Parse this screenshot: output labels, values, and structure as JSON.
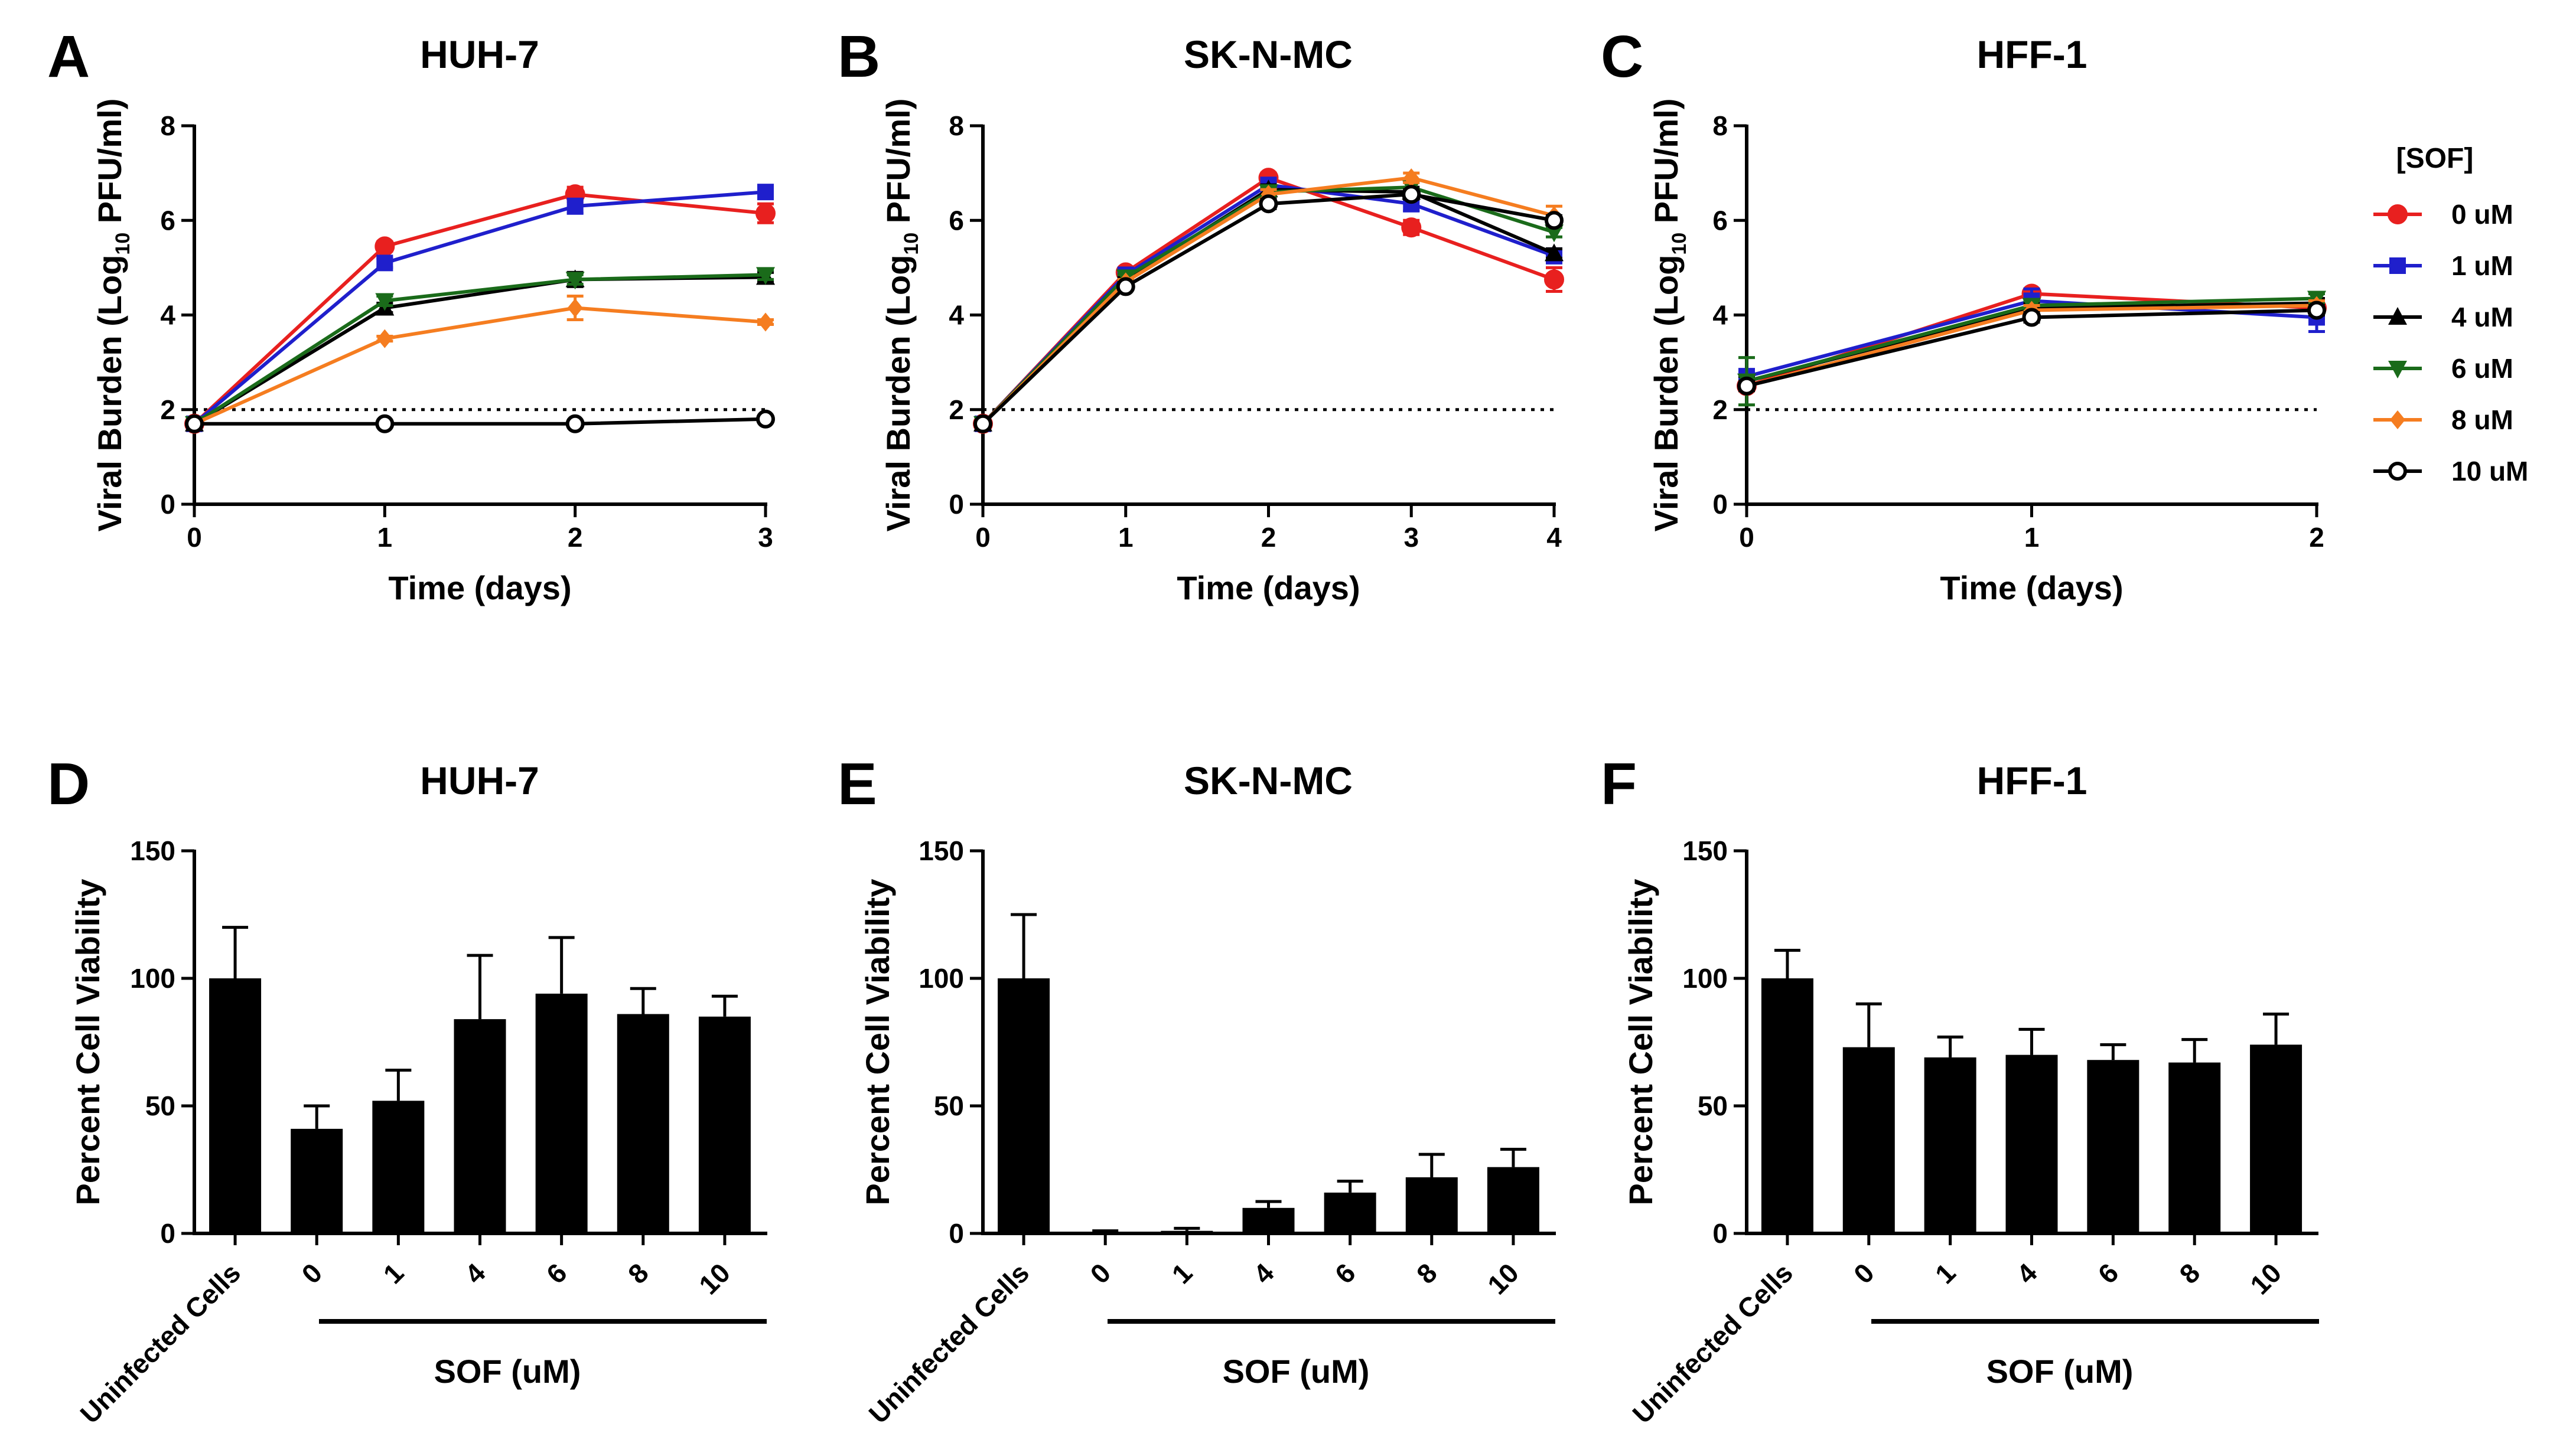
{
  "legend": {
    "title": "[SOF]",
    "entries": [
      {
        "label": "0 uM",
        "color": "#e8201f",
        "marker": "circle-filled"
      },
      {
        "label": "1 uM",
        "color": "#1f1fcc",
        "marker": "square-filled"
      },
      {
        "label": "4 uM",
        "color": "#000000",
        "marker": "triangle-up"
      },
      {
        "label": "6 uM",
        "color": "#1a6b1a",
        "marker": "triangle-down"
      },
      {
        "label": "8 uM",
        "color": "#f57d20",
        "marker": "diamond"
      },
      {
        "label": "10 uM",
        "color": "#000000",
        "marker": "circle-open"
      }
    ]
  },
  "chart_data": [
    {
      "id": "A",
      "type": "line",
      "title": "HUH-7",
      "xlabel": "Time (days)",
      "ylabel": {
        "pre": "Viral Burden (Log",
        "sub": "10",
        "post": " PFU/ml)"
      },
      "xlim": [
        0,
        3
      ],
      "ylim": [
        0,
        8
      ],
      "xticks": [
        0,
        1,
        2,
        3
      ],
      "yticks": [
        0,
        2,
        4,
        6,
        8
      ],
      "reference_line": 2,
      "x": [
        0,
        1,
        2,
        3
      ],
      "series": [
        {
          "name": "0 uM",
          "values": [
            1.7,
            5.45,
            6.55,
            6.15
          ],
          "errors": [
            0,
            0.1,
            0.15,
            0.2
          ]
        },
        {
          "name": "1 uM",
          "values": [
            1.7,
            5.1,
            6.3,
            6.6
          ],
          "errors": [
            0,
            0.1,
            0.15,
            0.1
          ]
        },
        {
          "name": "4 uM",
          "values": [
            1.7,
            4.15,
            4.75,
            4.8
          ],
          "errors": [
            0,
            0.1,
            0.15,
            0.1
          ]
        },
        {
          "name": "6 uM",
          "values": [
            1.7,
            4.3,
            4.75,
            4.85
          ],
          "errors": [
            0,
            0.1,
            0.1,
            0.1
          ]
        },
        {
          "name": "8 uM",
          "values": [
            1.7,
            3.5,
            4.15,
            3.85
          ],
          "errors": [
            0,
            0.05,
            0.25,
            0.05
          ]
        },
        {
          "name": "10 uM",
          "values": [
            1.7,
            1.7,
            1.7,
            1.8
          ],
          "errors": [
            0,
            0,
            0,
            0.05
          ]
        }
      ]
    },
    {
      "id": "B",
      "type": "line",
      "title": "SK-N-MC",
      "xlabel": "Time (days)",
      "ylabel": {
        "pre": "Viral Burden (Log",
        "sub": "10",
        "post": " PFU/ml)"
      },
      "xlim": [
        0,
        4
      ],
      "ylim": [
        0,
        8
      ],
      "xticks": [
        0,
        1,
        2,
        3,
        4
      ],
      "yticks": [
        0,
        2,
        4,
        6,
        8
      ],
      "reference_line": 2,
      "x": [
        0,
        1,
        2,
        3,
        4
      ],
      "series": [
        {
          "name": "0 uM",
          "values": [
            1.7,
            4.9,
            6.9,
            5.85,
            4.75
          ],
          "errors": [
            0,
            0.05,
            0.1,
            0.15,
            0.25
          ]
        },
        {
          "name": "1 uM",
          "values": [
            1.7,
            4.85,
            6.75,
            6.35,
            5.25
          ],
          "errors": [
            0,
            0.05,
            0.1,
            0.15,
            0.15
          ]
        },
        {
          "name": "4 uM",
          "values": [
            1.7,
            4.75,
            6.65,
            6.6,
            5.3
          ],
          "errors": [
            0,
            0.05,
            0.1,
            0.1,
            0.1
          ]
        },
        {
          "name": "6 uM",
          "values": [
            1.7,
            4.8,
            6.6,
            6.7,
            5.75
          ],
          "errors": [
            0,
            0.05,
            0.1,
            0.1,
            0.1
          ]
        },
        {
          "name": "8 uM",
          "values": [
            1.7,
            4.7,
            6.55,
            6.9,
            6.1
          ],
          "errors": [
            0,
            0.05,
            0.1,
            0.1,
            0.2
          ]
        },
        {
          "name": "10 uM",
          "values": [
            1.7,
            4.6,
            6.35,
            6.55,
            6.0
          ],
          "errors": [
            0,
            0.05,
            0.1,
            0.1,
            0.1
          ]
        }
      ]
    },
    {
      "id": "C",
      "type": "line",
      "title": "HFF-1",
      "xlabel": "Time (days)",
      "ylabel": {
        "pre": "Viral Burden (Log",
        "sub": "10",
        "post": " PFU/ml)"
      },
      "xlim": [
        0,
        2
      ],
      "ylim": [
        0,
        8
      ],
      "xticks": [
        0,
        1,
        2
      ],
      "yticks": [
        0,
        2,
        4,
        6,
        8
      ],
      "reference_line": 2,
      "x": [
        0,
        1,
        2
      ],
      "series": [
        {
          "name": "0 uM",
          "values": [
            2.5,
            4.45,
            4.15
          ],
          "errors": [
            0.1,
            0.1,
            0.1
          ]
        },
        {
          "name": "1 uM",
          "values": [
            2.7,
            4.3,
            3.95
          ],
          "errors": [
            0.15,
            0.25,
            0.3
          ]
        },
        {
          "name": "4 uM",
          "values": [
            2.6,
            4.15,
            4.25
          ],
          "errors": [
            0.1,
            0.1,
            0.1
          ]
        },
        {
          "name": "6 uM",
          "values": [
            2.6,
            4.2,
            4.35
          ],
          "errors": [
            0.5,
            0.1,
            0.1
          ]
        },
        {
          "name": "8 uM",
          "values": [
            2.5,
            4.1,
            4.2
          ],
          "errors": [
            0.1,
            0.1,
            0.1
          ]
        },
        {
          "name": "10 uM",
          "values": [
            2.5,
            3.95,
            4.1
          ],
          "errors": [
            0.1,
            0.1,
            0.1
          ]
        }
      ]
    },
    {
      "id": "D",
      "type": "bar",
      "title": "HUH-7",
      "ylabel": "Percent Cell Viability",
      "xlabel": "SOF (uM)",
      "ylim": [
        0,
        150
      ],
      "yticks": [
        0,
        50,
        100,
        150
      ],
      "categories": [
        "Uninfected Cells",
        "0",
        "1",
        "4",
        "6",
        "8",
        "10"
      ],
      "values": [
        100,
        41,
        52,
        84,
        94,
        86,
        85
      ],
      "errors": [
        20,
        9,
        12,
        25,
        22,
        10,
        8
      ]
    },
    {
      "id": "E",
      "type": "bar",
      "title": "SK-N-MC",
      "ylabel": "Percent Cell Viability",
      "xlabel": "SOF (uM)",
      "ylim": [
        0,
        150
      ],
      "yticks": [
        0,
        50,
        100,
        150
      ],
      "categories": [
        "Uninfected Cells",
        "0",
        "1",
        "4",
        "6",
        "8",
        "10"
      ],
      "values": [
        100,
        0.5,
        1,
        10,
        16,
        22,
        26
      ],
      "errors": [
        25,
        0.5,
        1,
        2.5,
        4.5,
        9,
        7
      ]
    },
    {
      "id": "F",
      "type": "bar",
      "title": "HFF-1",
      "ylabel": "Percent Cell Viability",
      "xlabel": "SOF (uM)",
      "ylim": [
        0,
        150
      ],
      "yticks": [
        0,
        50,
        100,
        150
      ],
      "categories": [
        "Uninfected Cells",
        "0",
        "1",
        "4",
        "6",
        "8",
        "10"
      ],
      "values": [
        100,
        73,
        69,
        70,
        68,
        67,
        74
      ],
      "errors": [
        11,
        17,
        8,
        10,
        6,
        9,
        12
      ]
    }
  ]
}
